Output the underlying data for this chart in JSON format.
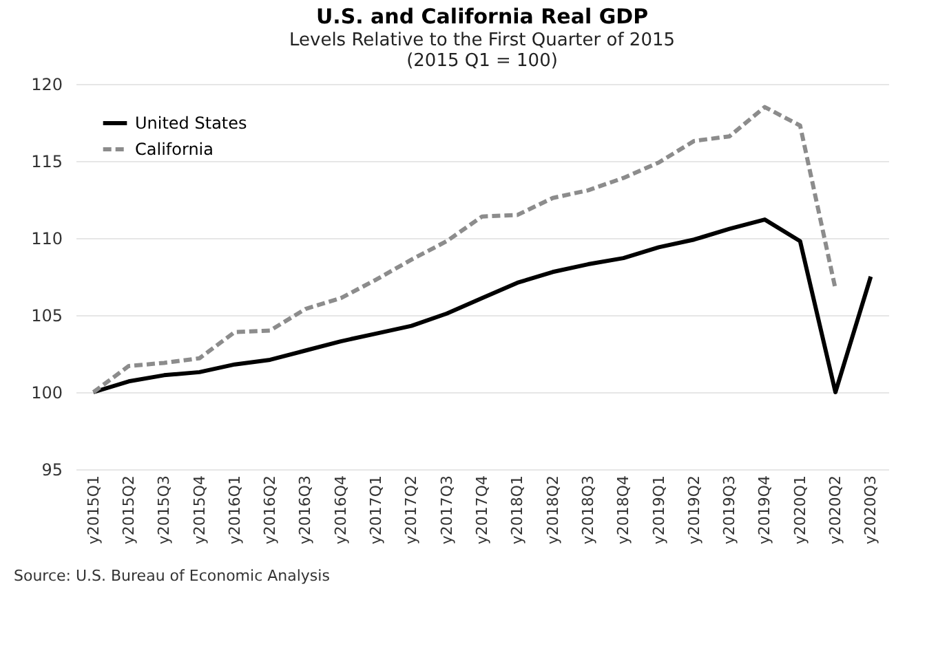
{
  "chart_data": {
    "type": "line",
    "title": "U.S. and California Real GDP",
    "subtitle": "Levels Relative to the First Quarter of 2015",
    "annotations": [
      "(2015 Q1 = 100)",
      "Source: U.S. Bureau of Economic Analysis"
    ],
    "categories": [
      "y2015Q1",
      "y2015Q2",
      "y2015Q3",
      "y2015Q4",
      "y2016Q1",
      "y2016Q2",
      "y2016Q3",
      "y2016Q4",
      "y2017Q1",
      "y2017Q2",
      "y2017Q3",
      "y2017Q4",
      "y2018Q1",
      "y2018Q2",
      "y2018Q3",
      "y2018Q4",
      "y2019Q1",
      "y2019Q2",
      "y2019Q3",
      "y2019Q4",
      "y2020Q1",
      "y2020Q2",
      "y2020Q3"
    ],
    "series": [
      {
        "name": "United States",
        "color": "#000000",
        "line_style": "solid",
        "values": [
          100,
          100.7,
          101.1,
          101.3,
          101.8,
          102.1,
          102.7,
          103.3,
          103.8,
          104.3,
          105.1,
          106.1,
          107.1,
          107.8,
          108.3,
          108.7,
          109.4,
          109.9,
          110.6,
          111.2,
          109.8,
          100.0,
          107.5
        ]
      },
      {
        "name": "California",
        "color": "#8c8c8c",
        "line_style": "dashed",
        "values": [
          100,
          101.7,
          101.9,
          102.2,
          103.9,
          104.0,
          105.4,
          106.1,
          107.3,
          108.6,
          109.8,
          111.4,
          111.5,
          112.6,
          113.1,
          113.9,
          114.9,
          116.3,
          116.6,
          118.5,
          117.3,
          106.7,
          null
        ]
      }
    ],
    "ylim": [
      95,
      120
    ],
    "yticks": [
      95,
      100,
      105,
      110,
      115,
      120
    ],
    "grid": "y",
    "legend": "top left",
    "marker": "none"
  }
}
